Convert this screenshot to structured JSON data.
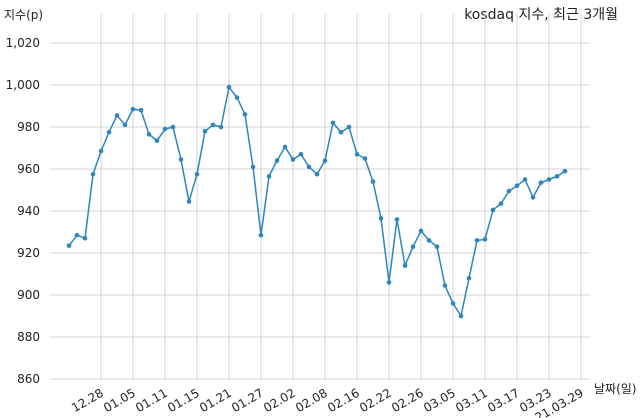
{
  "chart_data": {
    "type": "line",
    "title": "kosdaq 지수, 최근 3개월",
    "ylabel": "지수(p)",
    "xlabel": "날짜(일)",
    "ylim": [
      860,
      1030
    ],
    "yticks": [
      860,
      880,
      900,
      920,
      940,
      960,
      980,
      1000,
      1020
    ],
    "ytick_labels": [
      "860",
      "880",
      "900",
      "920",
      "940",
      "960",
      "980",
      "1,000",
      "1,020"
    ],
    "xticks": [
      {
        "index": 4,
        "label": "12.28"
      },
      {
        "index": 8,
        "label": "01.05"
      },
      {
        "index": 12,
        "label": "01.11"
      },
      {
        "index": 16,
        "label": "01.15"
      },
      {
        "index": 20,
        "label": "01.21"
      },
      {
        "index": 24,
        "label": "01.27"
      },
      {
        "index": 28,
        "label": "02.02"
      },
      {
        "index": 32,
        "label": "02.08"
      },
      {
        "index": 36,
        "label": "02.16"
      },
      {
        "index": 40,
        "label": "02.22"
      },
      {
        "index": 44,
        "label": "02.26"
      },
      {
        "index": 48,
        "label": "03.05"
      },
      {
        "index": 52,
        "label": "03.11"
      },
      {
        "index": 56,
        "label": "03.17"
      },
      {
        "index": 60,
        "label": "03.23"
      },
      {
        "index": 64,
        "label": "21.03.29"
      }
    ],
    "grid": true,
    "color": "#2e86ba",
    "series": [
      {
        "values": [
          923.5,
          928.5,
          927,
          957.5,
          968.5,
          977.5,
          985.5,
          981,
          988.5,
          988,
          976.5,
          973.5,
          979,
          980,
          964.5,
          944.5,
          957.5,
          978,
          981,
          980,
          999,
          994,
          986,
          961,
          928.5,
          956.5,
          964,
          970.5,
          964.5,
          967,
          961,
          957.5,
          964,
          982,
          977.5,
          980,
          967,
          965,
          954,
          936.5,
          906,
          936,
          914,
          923,
          930.5,
          926,
          923,
          904.5,
          896,
          890,
          908,
          926,
          926.5,
          940.5,
          943.5,
          949.5,
          952,
          955,
          946.5,
          953.5,
          955,
          956.5,
          959
        ]
      }
    ]
  }
}
